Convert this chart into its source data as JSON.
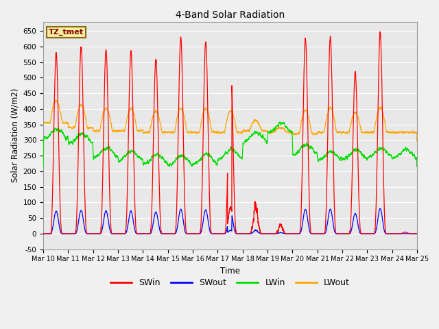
{
  "title": "4-Band Solar Radiation",
  "xlabel": "Time",
  "ylabel": "Solar Radiation (W/m2)",
  "annotation": "TZ_tmet",
  "ylim": [
    -50,
    680
  ],
  "colors": {
    "SWin": "#ff0000",
    "SWout": "#0000ff",
    "LWin": "#00dd00",
    "LWout": "#ffa500"
  },
  "plot_bg": "#e8e8e8",
  "fig_bg": "#f0f0f0",
  "n_days": 15,
  "start_day": 10,
  "resolution": 288
}
